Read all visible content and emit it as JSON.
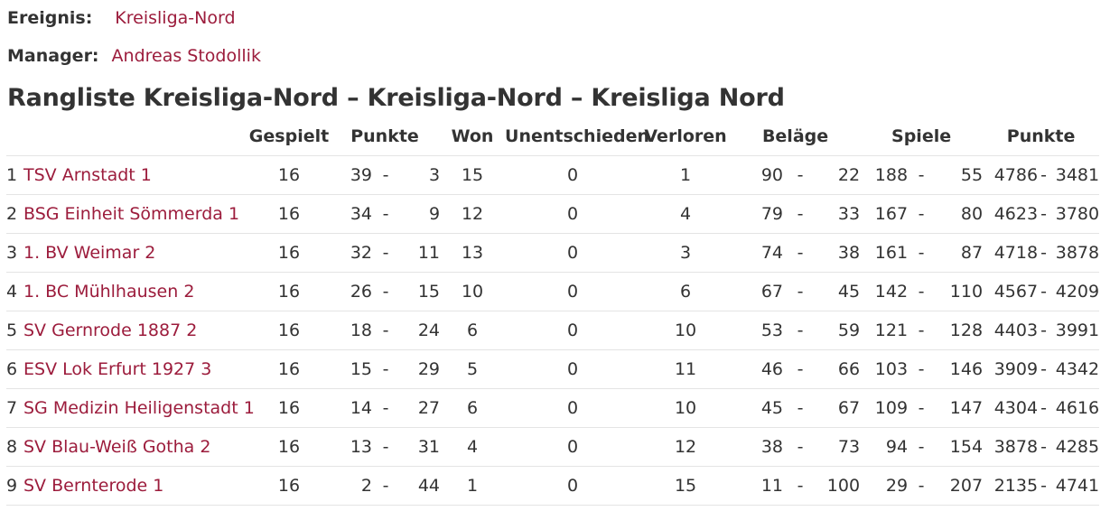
{
  "meta": {
    "event_label": "Ereignis:",
    "event_value": "Kreisliga-Nord",
    "manager_label": "Manager:",
    "manager_value": "Andreas Stodollik"
  },
  "title": "Rangliste Kreisliga-Nord – Kreisliga-Nord – Kreisliga Nord",
  "columns": {
    "gespielt": "Gespielt",
    "punkte": "Punkte",
    "won": "Won",
    "unentschieden": "Unentschieden",
    "verloren": "Verloren",
    "belaege": "Beläge",
    "spiele": "Spiele",
    "punkte2": "Punkte"
  },
  "separator": "-",
  "colors": {
    "link": "#9c1c3c",
    "text": "#333333",
    "row_border": "#e4e4e4"
  },
  "rows": [
    {
      "rank": "1",
      "team": "TSV Arnstadt 1",
      "played": "16",
      "pts_for": "39",
      "pts_against": "3",
      "won": "15",
      "draw": "0",
      "lost": "1",
      "bel_for": "90",
      "bel_against": "22",
      "sp_for": "188",
      "sp_against": "55",
      "p_for": "4786",
      "p_against": "3481"
    },
    {
      "rank": "2",
      "team": "BSG Einheit Sömmerda 1",
      "played": "16",
      "pts_for": "34",
      "pts_against": "9",
      "won": "12",
      "draw": "0",
      "lost": "4",
      "bel_for": "79",
      "bel_against": "33",
      "sp_for": "167",
      "sp_against": "80",
      "p_for": "4623",
      "p_against": "3780"
    },
    {
      "rank": "3",
      "team": "1. BV Weimar 2",
      "played": "16",
      "pts_for": "32",
      "pts_against": "11",
      "won": "13",
      "draw": "0",
      "lost": "3",
      "bel_for": "74",
      "bel_against": "38",
      "sp_for": "161",
      "sp_against": "87",
      "p_for": "4718",
      "p_against": "3878"
    },
    {
      "rank": "4",
      "team": "1. BC Mühlhausen 2",
      "played": "16",
      "pts_for": "26",
      "pts_against": "15",
      "won": "10",
      "draw": "0",
      "lost": "6",
      "bel_for": "67",
      "bel_against": "45",
      "sp_for": "142",
      "sp_against": "110",
      "p_for": "4567",
      "p_against": "4209"
    },
    {
      "rank": "5",
      "team": "SV Gernrode 1887 2",
      "played": "16",
      "pts_for": "18",
      "pts_against": "24",
      "won": "6",
      "draw": "0",
      "lost": "10",
      "bel_for": "53",
      "bel_against": "59",
      "sp_for": "121",
      "sp_against": "128",
      "p_for": "4403",
      "p_against": "3991"
    },
    {
      "rank": "6",
      "team": "ESV Lok Erfurt 1927 3",
      "played": "16",
      "pts_for": "15",
      "pts_against": "29",
      "won": "5",
      "draw": "0",
      "lost": "11",
      "bel_for": "46",
      "bel_against": "66",
      "sp_for": "103",
      "sp_against": "146",
      "p_for": "3909",
      "p_against": "4342"
    },
    {
      "rank": "7",
      "team": "SG Medizin Heiligenstadt 1",
      "played": "16",
      "pts_for": "14",
      "pts_against": "27",
      "won": "6",
      "draw": "0",
      "lost": "10",
      "bel_for": "45",
      "bel_against": "67",
      "sp_for": "109",
      "sp_against": "147",
      "p_for": "4304",
      "p_against": "4616"
    },
    {
      "rank": "8",
      "team": "SV Blau-Weiß Gotha 2",
      "played": "16",
      "pts_for": "13",
      "pts_against": "31",
      "won": "4",
      "draw": "0",
      "lost": "12",
      "bel_for": "38",
      "bel_against": "73",
      "sp_for": "94",
      "sp_against": "154",
      "p_for": "3878",
      "p_against": "4285"
    },
    {
      "rank": "9",
      "team": "SV Bernterode 1",
      "played": "16",
      "pts_for": "2",
      "pts_against": "44",
      "won": "1",
      "draw": "0",
      "lost": "15",
      "bel_for": "11",
      "bel_against": "100",
      "sp_for": "29",
      "sp_against": "207",
      "p_for": "2135",
      "p_against": "4741"
    }
  ]
}
